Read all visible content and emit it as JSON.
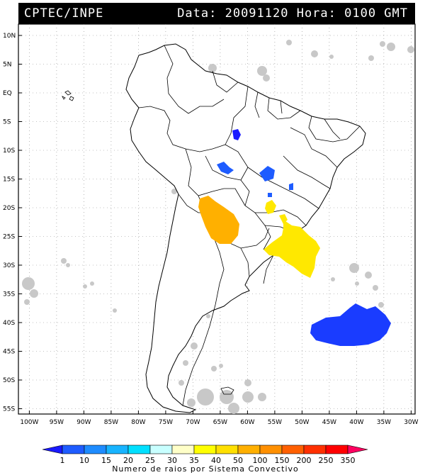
{
  "header": {
    "source": "CPTEC/INPE",
    "date_time": "Data: 20091120 Hora: 0100 GMT"
  },
  "map": {
    "latitudes": [
      10,
      5,
      0,
      -5,
      -10,
      -15,
      -20,
      -25,
      -30,
      -35,
      -40,
      -45,
      -50,
      -55
    ],
    "longitudes": [
      -100,
      -95,
      -90,
      -85,
      -80,
      -75,
      -70,
      -65,
      -60,
      -55,
      -50,
      -45,
      -40,
      -35,
      -30
    ],
    "lat_labels": [
      "10N",
      "5N",
      "EQ",
      "5S",
      "10S",
      "15S",
      "20S",
      "25S",
      "30S",
      "35S",
      "40S",
      "45S",
      "50S",
      "55S"
    ],
    "lon_labels": [
      "100W",
      "95W",
      "90W",
      "85W",
      "80W",
      "75W",
      "70W",
      "65W",
      "60W",
      "55W",
      "50W",
      "45W",
      "40W",
      "35W",
      "30W"
    ],
    "colors": {
      "blue_dark": "#1a1aff",
      "blue": "#1e5cff",
      "orange": "#ffb000",
      "yellow": "#ffe800",
      "cloud": "#c8c8c8"
    }
  },
  "legend": {
    "ticks": [
      "1",
      "10",
      "15",
      "20",
      "25",
      "30",
      "35",
      "40",
      "50",
      "100",
      "150",
      "200",
      "250",
      "350"
    ],
    "colors": [
      "#1a1aff",
      "#1e5cff",
      "#1e8cff",
      "#18b4ff",
      "#00e0ff",
      "#c8ffff",
      "#ffffc8",
      "#ffff00",
      "#ffe000",
      "#ffb000",
      "#ff9000",
      "#ff6000",
      "#ff3000",
      "#ff0000",
      "#ff0060"
    ],
    "caption": "Numero de raios por Sistema Convectivo"
  }
}
